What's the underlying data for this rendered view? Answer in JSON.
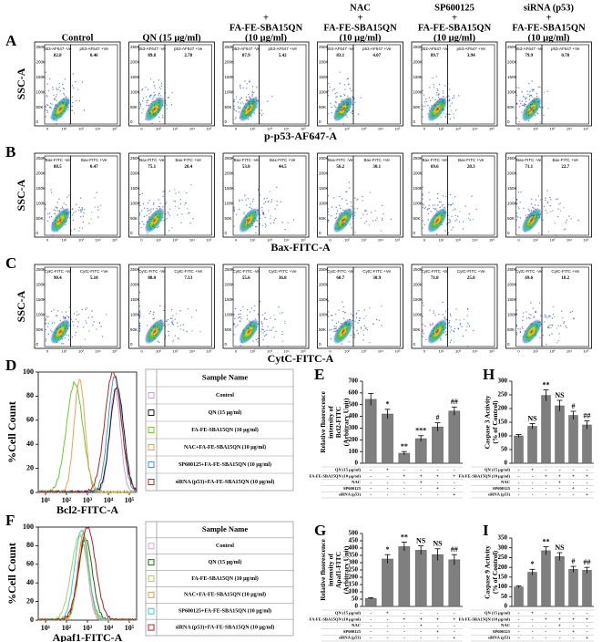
{
  "columns": [
    [
      "Control"
    ],
    [
      "QN (15 μg/ml)"
    ],
    [
      "+",
      "FA-FE-SBA15QN",
      "(10 μg/ml)"
    ],
    [
      "NAC",
      "+",
      "FA-FE-SBA15QN",
      "(10 μg/ml)"
    ],
    [
      "SP600125",
      "+",
      "FA-FE-SBA15QN",
      "(10 μg/ml)"
    ],
    [
      "siRNA (p53)",
      "+",
      "FA-FE-SBA15QN",
      "(10 μg/ml)"
    ]
  ],
  "flow": {
    "ylabel": "SSC-A",
    "yticks": [
      "250K",
      "200K",
      "150K",
      "100K",
      "50K",
      "0"
    ],
    "xticks": [
      "0",
      "10²",
      "10³",
      "10⁴",
      "10⁵"
    ],
    "rows": [
      {
        "label": "A",
        "xlabel": "p-p53-AF647-A",
        "neg_gate": "p53-AF647 -Ve",
        "pos_gate": "p53-AF647 +Ve",
        "neg": [
          "82.8",
          "89.8",
          "87.9",
          "83.1",
          "89.7",
          "79.9"
        ],
        "pos": [
          "0.46",
          "2.78",
          "5.42",
          "4.07",
          "3.94",
          "0.78"
        ]
      },
      {
        "label": "B",
        "xlabel": "Bax-FITC-A",
        "neg_gate": "Bax-FITC -Ve",
        "pos_gate": "Bax-FITC +Ve",
        "neg": [
          "88.5",
          "75.1",
          "53.0",
          "56.2",
          "69.6",
          "71.1"
        ],
        "pos": [
          "0.47",
          "20.4",
          "44.5",
          "30.1",
          "28.3",
          "22.7"
        ]
      },
      {
        "label": "C",
        "xlabel": "CytC-FITC-A",
        "neg_gate": "CytC-FITC -Ve",
        "pos_gate": "CytC-FITC +Ve",
        "neg": [
          "90.4",
          "88.0",
          "55.6",
          "60.7",
          "71.8",
          "69.6"
        ],
        "pos": [
          "5.10",
          "7.13",
          "36.8",
          "30.9",
          "25.0",
          "18.2"
        ]
      }
    ]
  },
  "histograms": [
    {
      "label": "D",
      "ylabel": "%Cell Count",
      "xlabel": "Bcl2-FITC-A",
      "ylim": [
        0,
        100
      ],
      "yticks": [
        0,
        20,
        40,
        60,
        80,
        100
      ],
      "xticks": [
        "10¹",
        "10²",
        "10³",
        "10⁴",
        "10⁵"
      ],
      "legend_title": "Sample Name",
      "samples": [
        {
          "name": "Control",
          "color": "#c9a0dc"
        },
        {
          "name": "QN (15 μg/ml)",
          "color": "#1a1a1a"
        },
        {
          "name": "FA-FE-SBA15QN (10 μg/ml)",
          "color": "#66cc33"
        },
        {
          "name": "NAC+FA-FE-SBA15QN (10 μg/ml)",
          "color": "#f0a050"
        },
        {
          "name": "SP600125+FA-FE-SBA15QN (10 μg/ml)",
          "color": "#3a9ad0"
        },
        {
          "name": "siRNA (p53)+FA-FE-SBA15QN (10 μg/ml)",
          "color": "#b02a2a"
        }
      ]
    },
    {
      "label": "F",
      "ylabel": "%Cell Count",
      "xlabel": "Apaf1-FITC-A",
      "ylim": [
        0,
        100
      ],
      "yticks": [
        0,
        20,
        40,
        60,
        80,
        100
      ],
      "xticks": [
        "10¹",
        "10²",
        "10³",
        "10⁴",
        "10⁵"
      ],
      "legend_title": "Sample Name",
      "samples": [
        {
          "name": "Control",
          "color": "#e0a0c8"
        },
        {
          "name": "QN (15 μg/ml)",
          "color": "#1a6b1a"
        },
        {
          "name": "FA-FE-SBA15QN (10 μg/ml)",
          "color": "#a8d060"
        },
        {
          "name": "NAC+FA-FE-SBA15QN (10 μg/ml)",
          "color": "#d8a040"
        },
        {
          "name": "SP600125+FA-FE-SBA15QN (10 μg/ml)",
          "color": "#40c8c8"
        },
        {
          "name": "siRNA (p53)+FA-FE-SBA15QN (10 μg/ml)",
          "color": "#b02020"
        }
      ]
    }
  ],
  "chart_data": [
    {
      "type": "bar",
      "label": "E",
      "ylabel": [
        "Relative fluorescence",
        "intensity of",
        "Bcl2-FITC",
        "(Arbitrary Unit)"
      ],
      "values": [
        545,
        420,
        85,
        210,
        310,
        445
      ],
      "errors": [
        50,
        40,
        15,
        25,
        35,
        35
      ],
      "annotations": [
        null,
        "*",
        "**",
        "***",
        "#",
        "##"
      ],
      "color": "#7f7f7f",
      "ylim": [
        0,
        700
      ],
      "yticks": [
        0,
        100,
        200,
        300,
        400,
        500,
        600,
        700
      ],
      "treatments": [
        {
          "name": "QN (15 μg/ml)",
          "signs": [
            "-",
            "+",
            "-",
            "-",
            "-",
            "-"
          ]
        },
        {
          "name": "FA-FE-SBA15QN (10 μg/ml)",
          "signs": [
            "-",
            "-",
            "+",
            "+",
            "+",
            "+"
          ]
        },
        {
          "name": "NAC",
          "signs": [
            "-",
            "-",
            "-",
            "+",
            "-",
            "-"
          ]
        },
        {
          "name": "SP600125",
          "signs": [
            "-",
            "-",
            "-",
            "-",
            "+",
            "-"
          ]
        },
        {
          "name": "siRNA (p53)",
          "signs": [
            "-",
            "-",
            "-",
            "-",
            "-",
            "+"
          ]
        }
      ]
    },
    {
      "type": "bar",
      "label": "H",
      "ylabel": [
        "Caspase 3 Activity",
        "(% of Control)"
      ],
      "values": [
        100,
        135,
        248,
        210,
        175,
        140
      ],
      "errors": [
        5,
        10,
        20,
        20,
        15,
        15
      ],
      "annotations": [
        null,
        "NS",
        "**",
        "NS",
        "#",
        "##"
      ],
      "color": "#7f7f7f",
      "ylim": [
        0,
        300
      ],
      "yticks": [
        0,
        50,
        100,
        150,
        200,
        250,
        300
      ],
      "treatments": [
        {
          "name": "QN (15 μg/ml)",
          "signs": [
            "-",
            "+",
            "-",
            "-",
            "-",
            "-"
          ]
        },
        {
          "name": "FA-FE-SBA15QN (10 μg/ml)",
          "signs": [
            "-",
            "-",
            "+",
            "+",
            "+",
            "+"
          ]
        },
        {
          "name": "NAC",
          "signs": [
            "-",
            "-",
            "-",
            "+",
            "-",
            "-"
          ]
        },
        {
          "name": "SP600125",
          "signs": [
            "-",
            "-",
            "-",
            "-",
            "+",
            "-"
          ]
        },
        {
          "name": "siRNA (p53)",
          "signs": [
            "-",
            "-",
            "-",
            "-",
            "-",
            "+"
          ]
        }
      ]
    },
    {
      "type": "bar",
      "label": "G",
      "ylabel": [
        "Relative fluorescence",
        "intensity of",
        "Apaf1-FITC",
        "(Arbitrary Unit)"
      ],
      "values": [
        55,
        325,
        410,
        385,
        355,
        320
      ],
      "errors": [
        5,
        30,
        30,
        30,
        40,
        35
      ],
      "annotations": [
        null,
        "*",
        "**",
        "NS",
        "NS",
        "##"
      ],
      "color": "#7f7f7f",
      "ylim": [
        0,
        500
      ],
      "yticks": [
        0,
        50,
        100,
        150,
        200,
        250,
        300,
        350,
        400,
        450,
        500
      ],
      "treatments": [
        {
          "name": "QN (15 μg/ml)",
          "signs": [
            "-",
            "+",
            "-",
            "-",
            "-",
            "-"
          ]
        },
        {
          "name": "FA-FE-SBA15QN (10 μg/ml)",
          "signs": [
            "-",
            "-",
            "+",
            "+",
            "+",
            "+"
          ]
        },
        {
          "name": "NAC",
          "signs": [
            "-",
            "-",
            "-",
            "+",
            "-",
            "-"
          ]
        },
        {
          "name": "SP600125",
          "signs": [
            "-",
            "-",
            "-",
            "-",
            "+",
            "-"
          ]
        },
        {
          "name": "siRNA (p53)",
          "signs": [
            "-",
            "-",
            "-",
            "-",
            "-",
            "+"
          ]
        }
      ]
    },
    {
      "type": "bar",
      "label": "I",
      "ylabel": [
        "Caspase 9 Activity",
        "(% of Control)"
      ],
      "values": [
        100,
        175,
        285,
        255,
        190,
        185
      ],
      "errors": [
        5,
        15,
        20,
        20,
        15,
        15
      ],
      "annotations": [
        null,
        "*",
        "**",
        "NS",
        "#",
        "##"
      ],
      "color": "#7f7f7f",
      "ylim": [
        0,
        350
      ],
      "yticks": [
        0,
        50,
        100,
        150,
        200,
        250,
        300,
        350
      ],
      "treatments": [
        {
          "name": "QN (15 μg/ml)",
          "signs": [
            "-",
            "+",
            "-",
            "-",
            "-",
            "-"
          ]
        },
        {
          "name": "FA-FE-SBA15QN (10 μg/ml)",
          "signs": [
            "-",
            "-",
            "+",
            "+",
            "+",
            "+"
          ]
        },
        {
          "name": "NAC",
          "signs": [
            "-",
            "-",
            "-",
            "+",
            "-",
            "-"
          ]
        },
        {
          "name": "SP600125",
          "signs": [
            "-",
            "-",
            "-",
            "-",
            "+",
            "-"
          ]
        },
        {
          "name": "siRNA (p53)",
          "signs": [
            "-",
            "-",
            "-",
            "-",
            "-",
            "+"
          ]
        }
      ]
    }
  ]
}
